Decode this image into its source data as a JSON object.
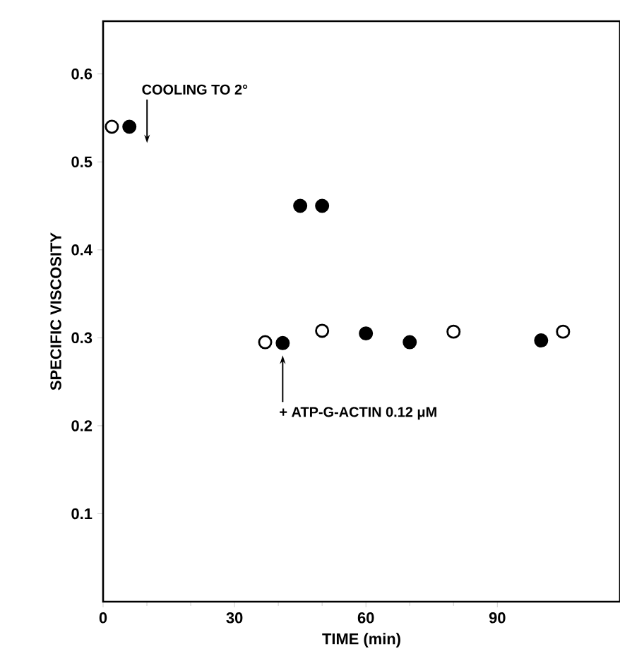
{
  "chart_data": {
    "type": "scatter",
    "xlabel": "TIME (min)",
    "ylabel": "SPECIFIC VISCOSITY",
    "xlim": [
      0,
      118
    ],
    "ylim": [
      0,
      0.66
    ],
    "xticks": [
      0,
      30,
      60,
      90
    ],
    "yticks": [
      0.1,
      0.2,
      0.3,
      0.4,
      0.5,
      0.6
    ],
    "series": [
      {
        "color": "#ffffff",
        "x": [
          2,
          37,
          50,
          80,
          105
        ],
        "values": [
          0.54,
          0.295,
          0.308,
          0.307,
          0.307
        ]
      },
      {
        "color": "#000000",
        "x": [
          6,
          41,
          45,
          50,
          60,
          70,
          100
        ],
        "values": [
          0.54,
          0.294,
          0.45,
          0.45,
          0.305,
          0.295,
          0.297
        ]
      }
    ],
    "annotations": [
      "COOLING TO 2°",
      {
        "text": "+ ATP-G-ACTIN 0.12  μM",
        "x": 41,
        "y": 0.28
      }
    ]
  }
}
